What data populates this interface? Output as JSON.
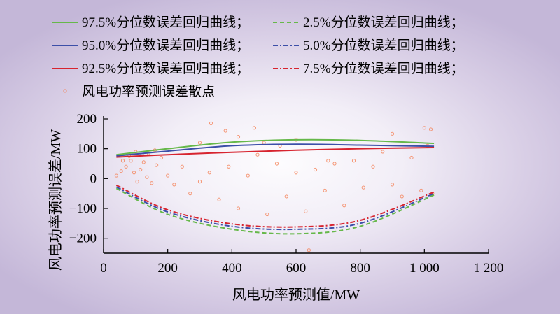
{
  "chart_data": {
    "type": "scatter",
    "xlabel": "风电功率预测值/MW",
    "ylabel": "风电功率预测误差/MW",
    "xlim": [
      0,
      1200
    ],
    "ylim": [
      -250,
      200
    ],
    "x_ticks": [
      0,
      200,
      400,
      600,
      800,
      1000,
      1200
    ],
    "x_tick_labels": [
      "0",
      "200",
      "400",
      "600",
      "800",
      "1 000",
      "1 200"
    ],
    "y_ticks": [
      -200,
      -100,
      0,
      100,
      200
    ],
    "y_tick_labels": [
      "−200",
      "−100",
      "0",
      "100",
      "200"
    ],
    "grid": false,
    "legend_position": "top",
    "series": [
      {
        "name": "97.5%分位数误差回归曲线；",
        "kind": "line",
        "dash": "solid",
        "color": "#66b84a",
        "x": [
          40,
          200,
          400,
          600,
          800,
          1030
        ],
        "y": [
          80,
          100,
          122,
          130,
          128,
          118
        ]
      },
      {
        "name": "2.5%分位数误差回归曲线；",
        "kind": "line",
        "dash": "dash",
        "color": "#66b84a",
        "x": [
          40,
          200,
          400,
          600,
          800,
          1030
        ],
        "y": [
          -33,
          -120,
          -170,
          -185,
          -160,
          -55
        ]
      },
      {
        "name": "95.0%分位数误差回归曲线；",
        "kind": "line",
        "dash": "solid",
        "color": "#3c4fa8",
        "x": [
          40,
          200,
          400,
          600,
          800,
          1030
        ],
        "y": [
          76,
          92,
          110,
          115,
          112,
          108
        ]
      },
      {
        "name": "5.0%分位数误差回归曲线；",
        "kind": "line",
        "dash": "dashdot",
        "color": "#3c4fa8",
        "x": [
          40,
          200,
          400,
          600,
          800,
          1030
        ],
        "y": [
          -28,
          -112,
          -160,
          -170,
          -150,
          -50
        ]
      },
      {
        "name": "92.5%分位数误差回归曲线；",
        "kind": "line",
        "dash": "solid",
        "color": "#d7242f",
        "x": [
          40,
          200,
          400,
          600,
          800,
          1030
        ],
        "y": [
          72,
          80,
          88,
          95,
          100,
          104
        ]
      },
      {
        "name": "7.5%分位数误差回归曲线；",
        "kind": "line",
        "dash": "dashdot",
        "color": "#d7242f",
        "x": [
          40,
          200,
          400,
          600,
          800,
          1030
        ],
        "y": [
          -22,
          -105,
          -152,
          -162,
          -140,
          -45
        ]
      },
      {
        "name": "风电功率预测误差散点",
        "kind": "scatter",
        "color": "#f4845a",
        "x": [
          40,
          55,
          70,
          85,
          95,
          105,
          115,
          125,
          135,
          150,
          165,
          180,
          200,
          220,
          245,
          270,
          300,
          330,
          360,
          390,
          420,
          450,
          480,
          510,
          540,
          570,
          600,
          630,
          660,
          690,
          720,
          750,
          780,
          810,
          840,
          870,
          900,
          930,
          960,
          990,
          1010,
          1025,
          60,
          80,
          100,
          120,
          140,
          160,
          300,
          335,
          380,
          420,
          470,
          500,
          550,
          600,
          640,
          700,
          900,
          1000,
          1020
        ],
        "y": [
          10,
          25,
          40,
          60,
          20,
          -10,
          30,
          55,
          5,
          -15,
          45,
          70,
          10,
          -20,
          40,
          -50,
          -10,
          20,
          -70,
          40,
          -100,
          10,
          80,
          -120,
          50,
          -60,
          20,
          -110,
          30,
          -40,
          50,
          -90,
          60,
          -30,
          40,
          90,
          -20,
          -60,
          70,
          -40,
          110,
          -50,
          60,
          75,
          90,
          80,
          85,
          95,
          120,
          185,
          160,
          140,
          170,
          120,
          110,
          130,
          -240,
          60,
          150,
          170,
          165
        ]
      }
    ]
  }
}
